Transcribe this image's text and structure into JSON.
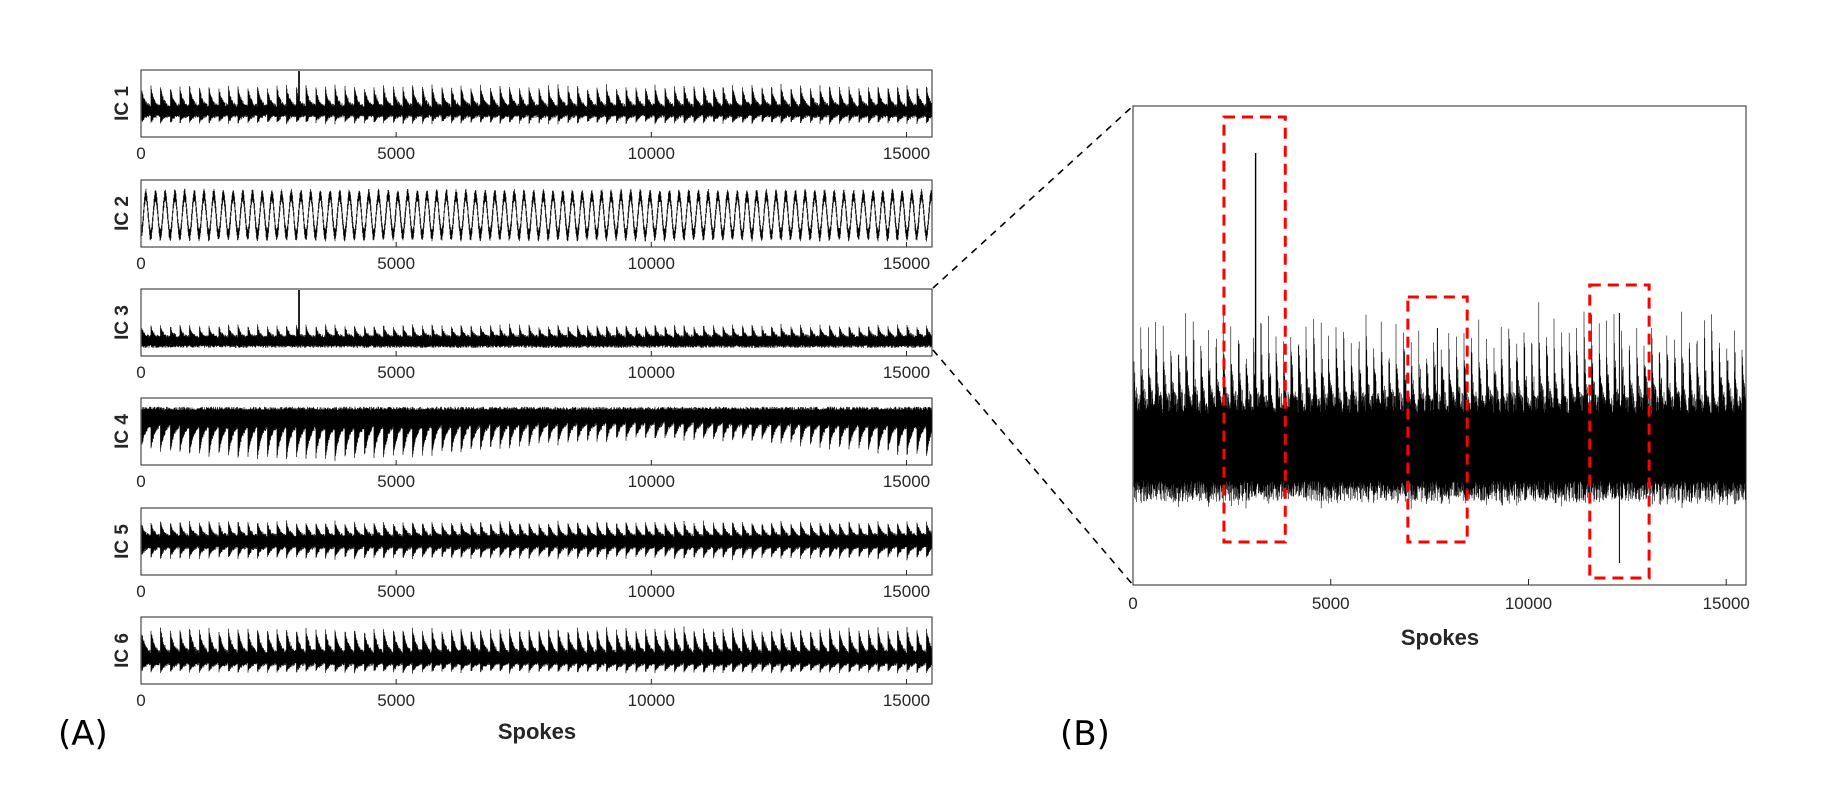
{
  "chart_data": [
    {
      "type": "line",
      "panel": "(A)",
      "x_label": "Spokes",
      "x_range": [
        0,
        15500
      ],
      "x_ticks": [
        "0",
        "5000",
        "10000",
        "15000"
      ],
      "subplots": [
        {
          "ylabel": "IC 1",
          "series": [
            {
              "pattern": "periodic bursts, large spike near 3100"
            }
          ]
        },
        {
          "ylabel": "IC 2",
          "series": [
            {
              "pattern": "regular periodic oscillation"
            }
          ]
        },
        {
          "ylabel": "IC 3",
          "series": [
            {
              "pattern": "low baseline with small bursts, large spike near 3100"
            }
          ]
        },
        {
          "ylabel": "IC 4",
          "series": [
            {
              "pattern": "downward periodic bursts"
            }
          ]
        },
        {
          "ylabel": "IC 5",
          "series": [
            {
              "pattern": "symmetric periodic bursts"
            }
          ]
        },
        {
          "ylabel": "IC 6",
          "series": [
            {
              "pattern": "periodic bursts"
            }
          ]
        }
      ]
    },
    {
      "type": "line",
      "panel": "(B)",
      "x_label": "Spokes",
      "x_range": [
        0,
        15500
      ],
      "x_ticks": [
        "0",
        "5000",
        "10000",
        "15000"
      ],
      "highlight_regions": [
        {
          "x_range": [
            2300,
            3850
          ],
          "color": "#ff0000",
          "style": "dashed"
        },
        {
          "x_range": [
            6950,
            8450
          ],
          "color": "#ff0000",
          "style": "dashed"
        },
        {
          "x_range": [
            11550,
            13050
          ],
          "color": "#ff0000",
          "style": "dashed"
        }
      ],
      "zoom_of": "IC 3"
    }
  ],
  "colors": {
    "trace": "#000000",
    "highlight": "#ff0000",
    "axis": "#262626"
  }
}
